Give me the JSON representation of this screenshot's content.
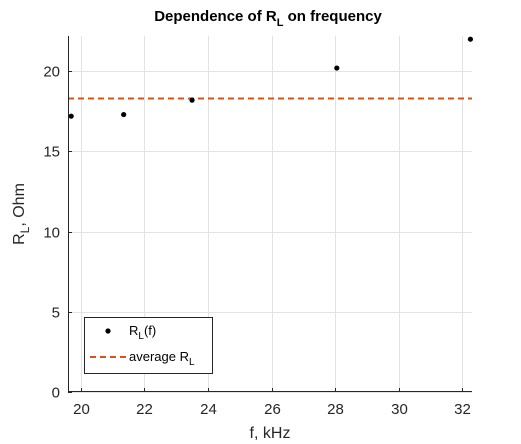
{
  "chart_data": {
    "type": "scatter",
    "title": {
      "main": "Dependence of R",
      "sub": "L",
      "rest": " on frequency"
    },
    "xlabel": "f, kHz",
    "ylabel": {
      "main": "R",
      "sub": "L",
      "rest": ", Ohm"
    },
    "xlim": [
      19.6,
      32.3
    ],
    "ylim": [
      0,
      22.2
    ],
    "xticks": [
      20,
      22,
      24,
      26,
      28,
      30,
      32
    ],
    "yticks": [
      0,
      5,
      10,
      15,
      20
    ],
    "grid": true,
    "legend_position": "bottom-left",
    "series": [
      {
        "name": {
          "main": "R",
          "sub": "L",
          "rest": "(f)"
        },
        "kind": "points",
        "color": "#000000",
        "x": [
          19.7,
          21.35,
          23.5,
          28.05,
          32.25
        ],
        "y": [
          17.2,
          17.3,
          18.2,
          20.2,
          22.0
        ]
      },
      {
        "name": {
          "main": "average R",
          "sub": "L",
          "rest": ""
        },
        "kind": "hline",
        "color": "#D95319",
        "dash": true,
        "y": 18.3
      }
    ]
  }
}
